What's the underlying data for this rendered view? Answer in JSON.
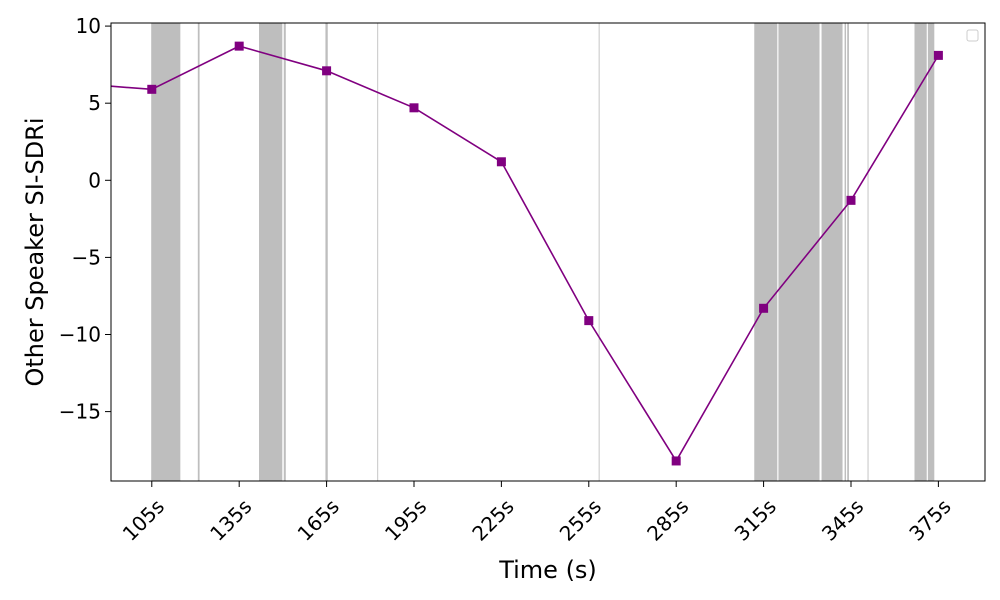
{
  "chart_data": {
    "type": "line",
    "title": "",
    "xlabel": "Time (s)",
    "ylabel": "Other Speaker SI-SDRi",
    "xlim": [
      91,
      391
    ],
    "ylim": [
      -19.5,
      10.2
    ],
    "x_ticks": [
      105,
      135,
      165,
      195,
      225,
      255,
      285,
      315,
      345,
      375
    ],
    "x_tick_labels": [
      "105s",
      "135s",
      "165s",
      "195s",
      "225s",
      "255s",
      "285s",
      "315s",
      "345s",
      "375s"
    ],
    "y_ticks": [
      -15,
      -10,
      -5,
      0,
      5,
      10
    ],
    "y_tick_labels": [
      "−15",
      "−10",
      "−5",
      "0",
      "5",
      "10"
    ],
    "grid": false,
    "legend": {
      "placement": "top-right",
      "entries": []
    },
    "series": [
      {
        "x": [
          91,
          105,
          135,
          165,
          195,
          225,
          255,
          285,
          315,
          345,
          375
        ],
        "y": [
          6.1,
          5.9,
          8.7,
          7.1,
          4.7,
          1.2,
          -9.1,
          -18.2,
          -8.3,
          -1.3,
          8.1
        ],
        "color": "#800080",
        "marker": "square"
      }
    ],
    "shaded_regions": {
      "color": "#bebebe",
      "ranges": [
        [
          104.8,
          114.8
        ],
        [
          120.8,
          121.4
        ],
        [
          141.8,
          149.8
        ],
        [
          150.3,
          151.0
        ],
        [
          164.6,
          165.4
        ],
        [
          182.4,
          182.7
        ],
        [
          258.4,
          258.7
        ],
        [
          311.8,
          319.7
        ],
        [
          320.1,
          334.2
        ],
        [
          334.9,
          342.1
        ],
        [
          342.8,
          343.3
        ],
        [
          343.7,
          344.3
        ],
        [
          350.7,
          351.0
        ],
        [
          366.8,
          371.0
        ],
        [
          371.4,
          373.6
        ]
      ]
    }
  }
}
